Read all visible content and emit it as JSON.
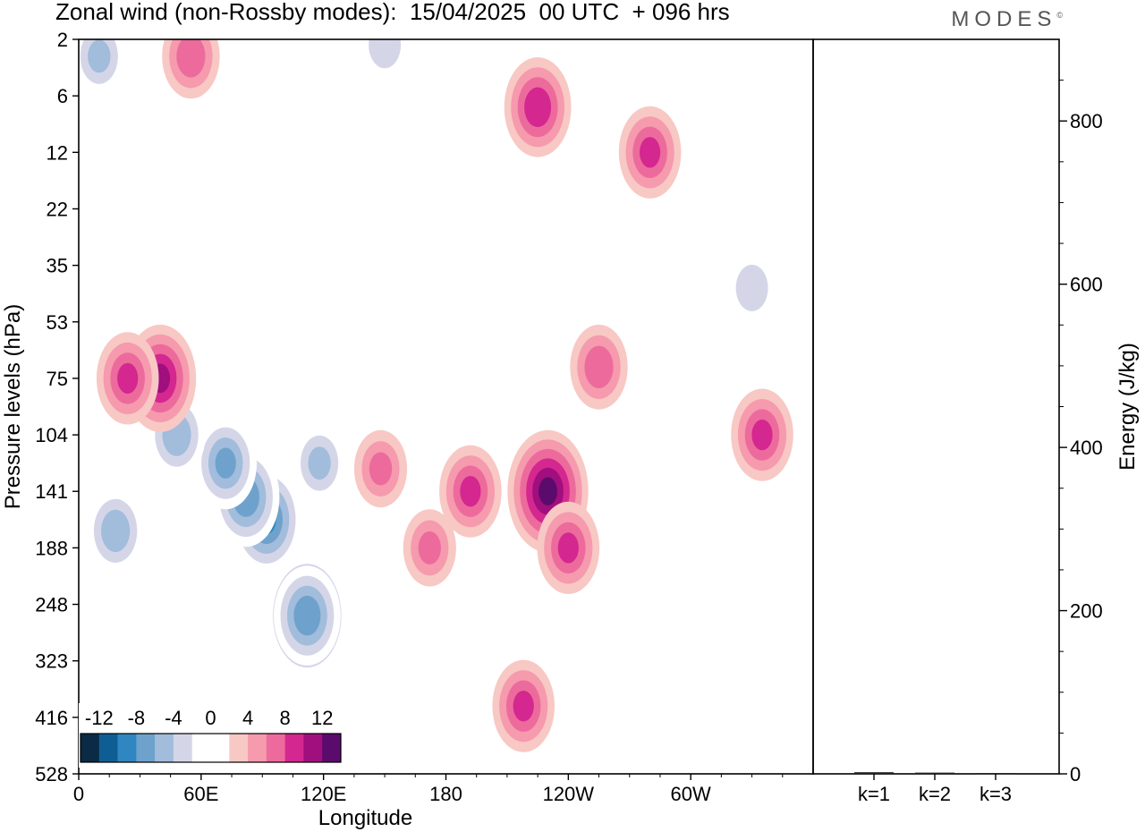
{
  "title": "Zonal wind (non-Rossby modes):  15/04/2025  00 UTC  + 096 hrs",
  "logo": "MODES",
  "chart_data": [
    {
      "type": "heatmap",
      "xlabel": "Longitude",
      "ylabel": "Pressure levels (hPa)",
      "xticks": [
        "0",
        "60E",
        "120E",
        "180",
        "120W",
        "60W"
      ],
      "yticks": [
        "2",
        "6",
        "12",
        "22",
        "35",
        "53",
        "75",
        "104",
        "141",
        "188",
        "248",
        "323",
        "416",
        "528"
      ],
      "colorbar": {
        "labels": [
          "-12",
          "-8",
          "-4",
          "0",
          "4",
          "8",
          "12"
        ],
        "levels": [
          -16,
          -14,
          -12,
          -10,
          -8,
          -6,
          -4,
          -2,
          2,
          4,
          6,
          8,
          10,
          12,
          14
        ],
        "colors": [
          "#0b2a45",
          "#0f5e93",
          "#2f86c0",
          "#6ea2cd",
          "#a2bcdc",
          "#d4d6e8",
          "#ffffff",
          "#ffffff",
          "#f8c8c4",
          "#f69aae",
          "#ec6b9c",
          "#d4278f",
          "#a00f7d",
          "#5b0b6c"
        ]
      },
      "features": [
        {
          "lon": 112,
          "lev": 10.2,
          "value": -12
        },
        {
          "lon": 112,
          "lev": 10.2,
          "value": -9
        },
        {
          "lon": 92,
          "lev": 8.5,
          "value": -10
        },
        {
          "lon": 82,
          "lev": 8.1,
          "value": -9
        },
        {
          "lon": 72,
          "lev": 7.5,
          "value": -8
        },
        {
          "lon": 48,
          "lev": 7.0,
          "value": -7
        },
        {
          "lon": 18,
          "lev": 8.7,
          "value": -7
        },
        {
          "lon": 118,
          "lev": 7.5,
          "value": -6
        },
        {
          "lon": 148,
          "lev": 7.6,
          "value": 6
        },
        {
          "lon": 172,
          "lev": 9.0,
          "value": 6
        },
        {
          "lon": 192,
          "lev": 8.0,
          "value": 8
        },
        {
          "lon": 230,
          "lev": 8.0,
          "value": 12
        },
        {
          "lon": 240,
          "lev": 9.0,
          "value": 8
        },
        {
          "lon": 218,
          "lev": 11.8,
          "value": 8
        },
        {
          "lon": 40,
          "lev": 6.0,
          "value": 10
        },
        {
          "lon": 24,
          "lev": 6.0,
          "value": 8
        },
        {
          "lon": 225,
          "lev": 1.2,
          "value": 9
        },
        {
          "lon": 280,
          "lev": 2.0,
          "value": 8
        },
        {
          "lon": 335,
          "lev": 7.0,
          "value": 8
        },
        {
          "lon": 255,
          "lev": 5.8,
          "value": 7
        },
        {
          "lon": 150,
          "lev": 0.1,
          "value": -5
        },
        {
          "lon": 330,
          "lev": 4.4,
          "value": -5
        },
        {
          "lon": 10,
          "lev": 0.3,
          "value": -6
        },
        {
          "lon": 55,
          "lev": 0.3,
          "value": 7
        }
      ]
    },
    {
      "type": "bar",
      "categories": [
        "k=1",
        "k=2",
        "k=3"
      ],
      "values": [
        2,
        1.5,
        1
      ],
      "ylabel": "Energy (J/kg)",
      "yticks": [
        "0",
        "200",
        "400",
        "600",
        "800"
      ],
      "ylim": [
        0,
        900
      ]
    }
  ]
}
